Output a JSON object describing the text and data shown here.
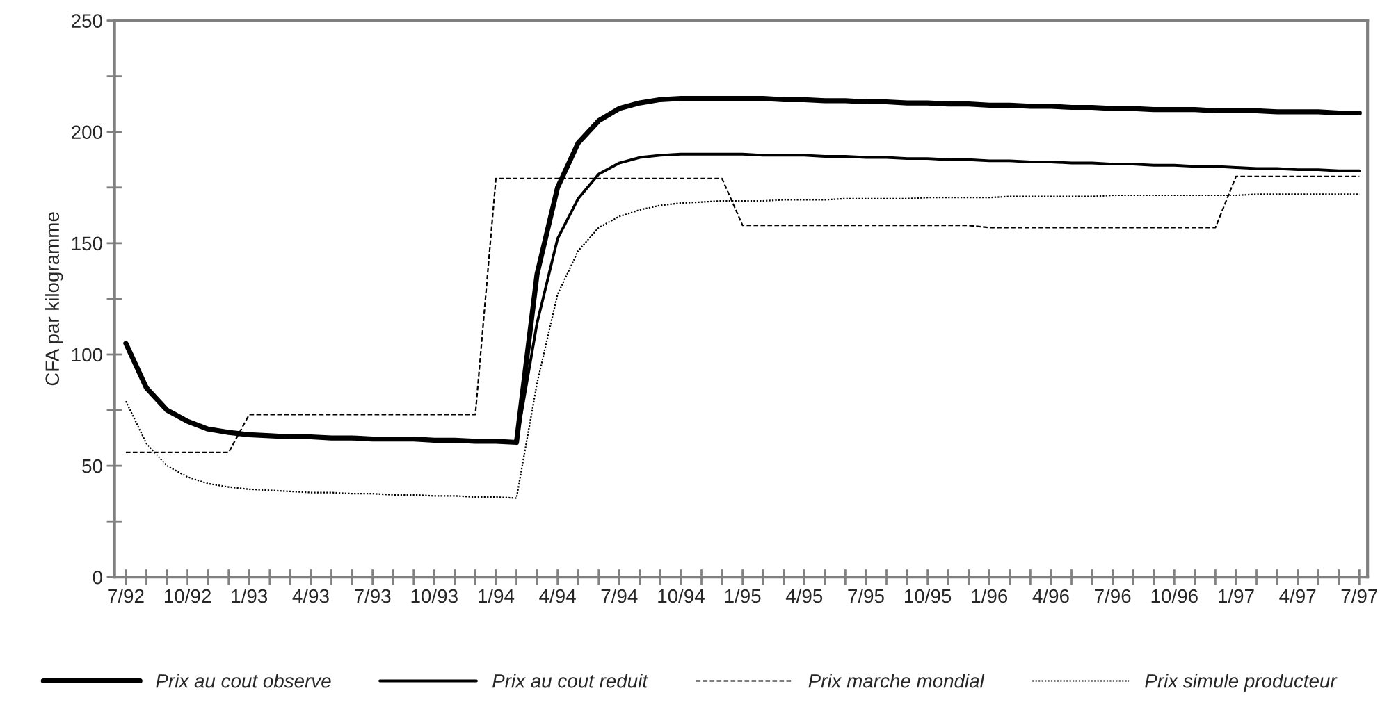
{
  "chart_data": {
    "type": "line",
    "ylabel": "CFA par kilogramme",
    "categories": [
      "7/92",
      null,
      null,
      "10/92",
      null,
      null,
      "1/93",
      null,
      null,
      "4/93",
      null,
      null,
      "7/93",
      null,
      null,
      "10/93",
      null,
      null,
      "1/94",
      null,
      null,
      "4/94",
      null,
      null,
      "7/94",
      null,
      null,
      "10/94",
      null,
      null,
      "1/95",
      null,
      null,
      "4/95",
      null,
      null,
      "7/95",
      null,
      null,
      "10/95",
      null,
      null,
      "1/96",
      null,
      null,
      "4/96",
      null,
      null,
      "7/96",
      null,
      null,
      "10/96",
      null,
      null,
      "1/97",
      null,
      null,
      "4/97",
      null,
      null,
      "7/97"
    ],
    "series": [
      {
        "name": "Prix au cout observe",
        "color": "#000000",
        "line_style": "solid",
        "values": [
          105,
          85,
          75,
          70,
          66.5,
          65,
          64,
          63.5,
          63,
          63,
          62.5,
          62.5,
          62,
          62,
          62,
          61.5,
          61.5,
          61,
          61,
          60.5,
          136,
          175,
          195,
          205,
          210.5,
          213,
          214.5,
          215,
          215,
          215,
          215,
          215,
          214.5,
          214.5,
          214,
          214,
          213.5,
          213.5,
          213,
          213,
          212.5,
          212.5,
          212,
          212,
          211.5,
          211.5,
          211,
          211,
          210.5,
          210.5,
          210,
          210,
          210,
          209.5,
          209.5,
          209.5,
          209,
          209,
          209,
          208.5,
          208.5
        ]
      },
      {
        "name": "Prix au cout reduit",
        "color": "#000000",
        "line_style": "solid",
        "values": [
          null,
          null,
          null,
          null,
          null,
          null,
          null,
          null,
          null,
          null,
          null,
          null,
          null,
          null,
          null,
          null,
          null,
          null,
          null,
          60.5,
          114,
          152,
          170,
          181,
          186,
          188.5,
          189.5,
          190,
          190,
          190,
          190,
          189.5,
          189.5,
          189.5,
          189,
          189,
          188.5,
          188.5,
          188,
          188,
          187.5,
          187.5,
          187,
          187,
          186.5,
          186.5,
          186,
          186,
          185.5,
          185.5,
          185,
          185,
          184.5,
          184.5,
          184,
          183.5,
          183.5,
          183,
          183,
          182.5,
          182.5
        ]
      },
      {
        "name": "Prix marche mondial",
        "color": "#000000",
        "line_style": "dashed",
        "values": [
          56,
          56,
          56,
          56,
          56,
          56,
          73,
          73,
          73,
          73,
          73,
          73,
          73,
          73,
          73,
          73,
          73,
          73,
          179,
          179,
          179,
          179,
          179,
          179,
          179,
          179,
          179,
          179,
          179,
          179,
          158,
          158,
          158,
          158,
          158,
          158,
          158,
          158,
          158,
          158,
          158,
          158,
          157,
          157,
          157,
          157,
          157,
          157,
          157,
          157,
          157,
          157,
          157,
          157,
          180,
          180,
          180,
          180,
          180,
          180,
          180
        ]
      },
      {
        "name": "Prix simule producteur",
        "color": "#000000",
        "line_style": "dotted",
        "values": [
          79,
          60,
          50,
          45,
          42,
          40.5,
          39.5,
          39,
          38.5,
          38,
          38,
          37.5,
          37.5,
          37,
          37,
          36.5,
          36.5,
          36,
          36,
          35.5,
          87,
          127,
          146.5,
          157,
          162,
          165,
          167,
          168,
          168.5,
          169,
          169,
          169,
          169.5,
          169.5,
          169.5,
          170,
          170,
          170,
          170,
          170.5,
          170.5,
          170.5,
          170.5,
          171,
          171,
          171,
          171,
          171,
          171.5,
          171.5,
          171.5,
          171.5,
          171.5,
          171.5,
          171.5,
          172,
          172,
          172,
          172,
          172,
          172
        ]
      }
    ],
    "ylim": [
      0,
      250
    ],
    "yticks": [
      0,
      {
        "value": 25,
        "label": null
      },
      50,
      {
        "value": 75,
        "label": null
      },
      100,
      {
        "value": 125,
        "label": null
      },
      150,
      {
        "value": 175,
        "label": null
      },
      200,
      {
        "value": 225,
        "label": null
      },
      250
    ],
    "grid": false,
    "legend": "bottom",
    "marker": "none"
  }
}
